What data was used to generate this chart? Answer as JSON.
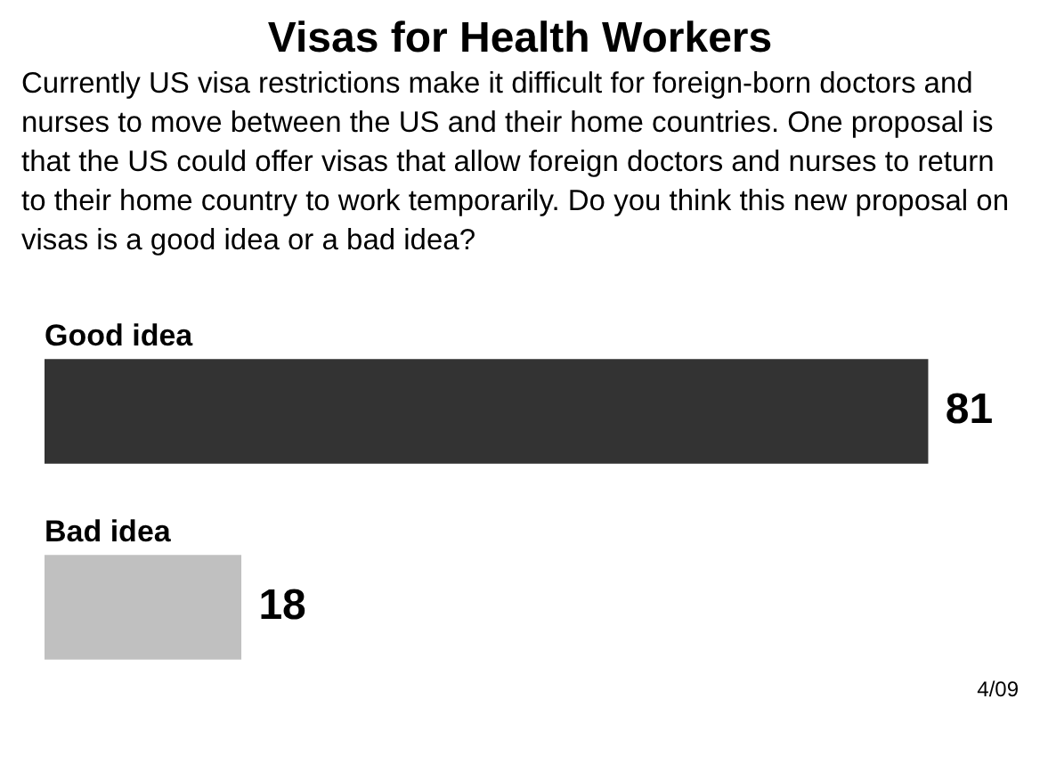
{
  "chart_data": {
    "type": "bar",
    "orientation": "horizontal",
    "title": "Visas for Health Workers",
    "subtitle": "Currently US visa restrictions make it difficult for foreign-born doctors and nurses to move between the US and their home countries.  One proposal is that the US could offer visas that allow foreign doctors and nurses to return to their home country to work temporarily. Do you think this new proposal on visas is a good idea or a bad idea?",
    "categories": [
      "Good idea",
      "Bad idea"
    ],
    "values": [
      81,
      18
    ],
    "colors": [
      "#333333",
      "#c0c0c0"
    ],
    "data_labels": true,
    "annotations": [
      "4/09"
    ]
  }
}
